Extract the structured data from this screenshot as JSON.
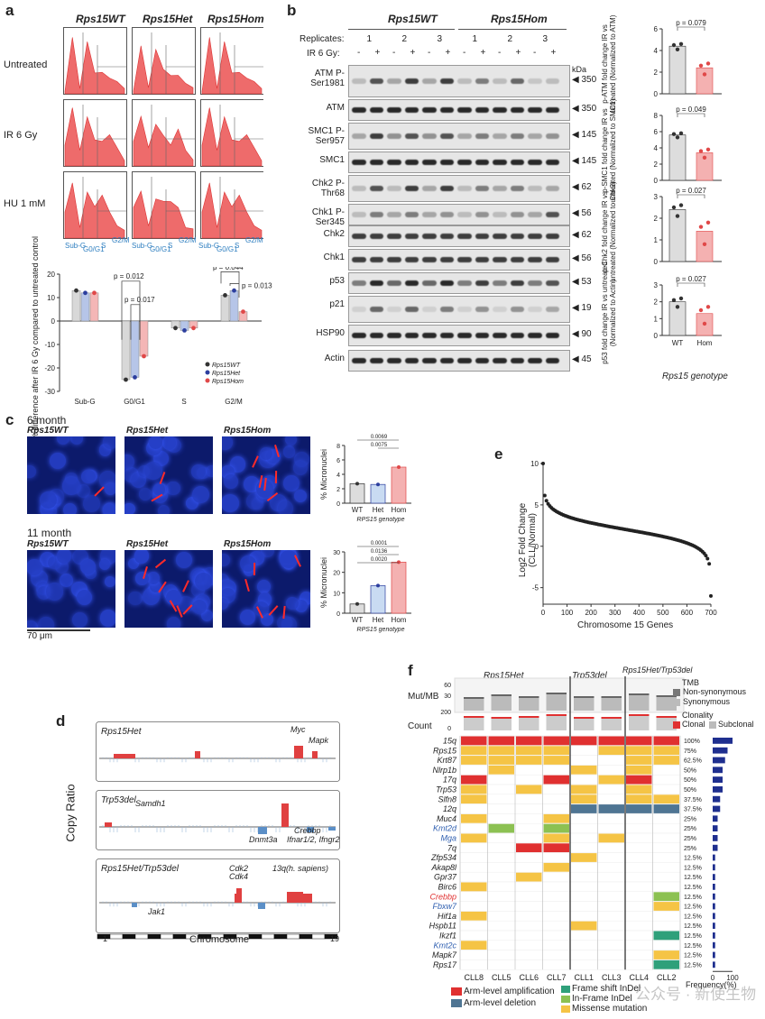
{
  "panels": {
    "a": "a",
    "b": "b",
    "c": "c",
    "d": "d",
    "e": "e",
    "f": "f"
  },
  "a": {
    "genotypes": [
      "Rps15WT",
      "Rps15Het",
      "Rps15Hom"
    ],
    "rows": [
      "Untreated",
      "IR 6 Gy",
      "HU 1 mM"
    ],
    "phases": [
      "Sub-G",
      "G0/G1",
      "S",
      "G2/M"
    ],
    "ylabel": "% difference after IR 6 Gy compared to untreated control",
    "pvals": [
      "p = 0.012",
      "p = 0.017",
      "p = 0.044",
      "p = 0.013"
    ],
    "legend": [
      "Rps15WT",
      "Rps15Het",
      "Rps15Hom"
    ],
    "yticks": [
      "20",
      "10",
      "0",
      "-10",
      "-20",
      "-30"
    ]
  },
  "b": {
    "groups": [
      "Rps15WT",
      "Rps15Hom"
    ],
    "replicates_label": "Replicates:",
    "replicates": [
      "1",
      "2",
      "3",
      "1",
      "2",
      "3"
    ],
    "ir_label": "IR 6 Gy:",
    "ir": [
      "-",
      "+",
      "-",
      "+",
      "-",
      "+",
      "-",
      "+",
      "-",
      "+",
      "-",
      "+"
    ],
    "kda": "kDa",
    "blots": [
      {
        "name": "ATM P-Ser1981",
        "size": "350"
      },
      {
        "name": "ATM",
        "size": "350"
      },
      {
        "name": "SMC1 P-Ser957",
        "size": "145"
      },
      {
        "name": "SMC1",
        "size": "145"
      },
      {
        "name": "Chk2 P-Thr68",
        "size": "62"
      },
      {
        "name": "Chk1 P-Ser345",
        "size": "56"
      },
      {
        "name": "Chk2",
        "size": "62"
      },
      {
        "name": "Chk1",
        "size": "56"
      },
      {
        "name": "p53",
        "size": "53"
      },
      {
        "name": "p21",
        "size": "19"
      },
      {
        "name": "HSP90",
        "size": "90"
      },
      {
        "name": "Actin",
        "size": "45"
      }
    ],
    "quant": [
      {
        "p": "p = 0.079",
        "ylabel": "p-ATM fold change IR vs untreated (Normalized to ATM)",
        "wt": 4.4,
        "hom": 2.4,
        "max": 6,
        "ticks": [
          "6",
          "4",
          "2",
          "0"
        ]
      },
      {
        "p": "p = 0.049",
        "ylabel": "p-SMC1 fold change IR vs untreated (Normalized to SMC1)",
        "wt": 5.6,
        "hom": 3.4,
        "max": 8,
        "ticks": [
          "8",
          "6",
          "4",
          "2",
          "0"
        ]
      },
      {
        "p": "p = 0.027",
        "ylabel": "p-Chk2 fold change IR vs untreated (Normalized to Chk2)",
        "wt": 2.4,
        "hom": 1.4,
        "max": 3,
        "ticks": [
          "3",
          "2",
          "1",
          "0"
        ]
      },
      {
        "p": "p = 0.027",
        "ylabel": "p53 fold change IR vs untreated (Normalized to Actin)",
        "wt": 2.0,
        "hom": 1.3,
        "max": 3,
        "ticks": [
          "3",
          "2",
          "1",
          "0"
        ]
      }
    ],
    "xcats": [
      "WT",
      "Hom"
    ],
    "xlabel": "Rps15 genotype"
  },
  "c": {
    "t6": "6 month",
    "t11": "11 month",
    "genos": [
      "Rps15WT",
      "Rps15Het",
      "Rps15Hom"
    ],
    "scale": "70 μm",
    "ylabel": "% Micronuclei",
    "xlabel": "RPS15 genotype",
    "cats": [
      "WT",
      "Het",
      "Hom"
    ],
    "m6": {
      "values": [
        2.7,
        2.6,
        5.0
      ],
      "ticks": [
        "8",
        "6",
        "4",
        "2",
        "0"
      ],
      "max": 8,
      "p": [
        "0.0069",
        "0.0075"
      ]
    },
    "m11": {
      "values": [
        4.5,
        13.5,
        25.0
      ],
      "ticks": [
        "30",
        "20",
        "10",
        "0"
      ],
      "max": 30,
      "p": [
        "0.0001",
        "0.0136",
        "0.0020"
      ]
    }
  },
  "d": {
    "tracks": [
      "Rps15Het",
      "Trp53del",
      "Rps15Het/Trp53del"
    ],
    "ylabel": "Copy Ratio",
    "xlabel": "Chromosome",
    "xstart": "1",
    "xend": "19",
    "genes": [
      "Myc",
      "Mapk",
      "Samdh1",
      "Dnmt3a",
      "Crebbp",
      "Ifnar1/2, Ifngr2",
      "Cdk2",
      "Cdk4",
      "13q(h. sapiens)",
      "Jak1"
    ]
  },
  "e": {
    "ylabel": "Log2 Fold Change (CLL/Normal)",
    "xlabel": "Chromosome 15 Genes",
    "xticks": [
      "0",
      "100",
      "200",
      "300",
      "400",
      "500",
      "600",
      "700"
    ],
    "yticks": [
      "10",
      "5",
      "0",
      "-5"
    ]
  },
  "f": {
    "groups": [
      "Rps15Het",
      "Trp53del",
      "Rps15Het/Trp53del"
    ],
    "mut_label": "Mut/MB",
    "mut_ticks": [
      "60",
      "30"
    ],
    "count_label": "Count",
    "count_ticks": [
      "200",
      "0"
    ],
    "tmb_legend": [
      "TMB",
      "Non-synonymous",
      "Synonymous"
    ],
    "clon_legend": [
      "Clonality",
      "Clonal",
      "Subclonal"
    ],
    "genes": [
      "15q",
      "Rps15",
      "Krt87",
      "Nlrp1b",
      "17q",
      "Trp53",
      "Slfn8",
      "12q",
      "Muc4",
      "Kmt2d",
      "Mga",
      "7q",
      "Zfp534",
      "Akap8l",
      "Gpr37",
      "Birc6",
      "Crebbp",
      "Fbxw7",
      "Hif1a",
      "Hspb11",
      "Ikzf1",
      "Kmt2c",
      "Mapk7",
      "Rps17"
    ],
    "freqs": [
      "100%",
      "75%",
      "62.5%",
      "50%",
      "50%",
      "50%",
      "37.5%",
      "37.5%",
      "25%",
      "25%",
      "25%",
      "25%",
      "12.5%",
      "12.5%",
      "12.5%",
      "12.5%",
      "12.5%",
      "12.5%",
      "12.5%",
      "12.5%",
      "12.5%",
      "12.5%",
      "12.5%",
      "12.5%"
    ],
    "samples": [
      "CLL8",
      "CLL5",
      "CLL6",
      "CLL7",
      "CLL1",
      "CLL3",
      "CLL4",
      "CLL2"
    ],
    "freq_axis": "Frequency(%)",
    "freq_ticks": [
      "0",
      "100"
    ],
    "legend": [
      "Arm-level amplification",
      "Arm-level deletion",
      "Frame shift InDel",
      "In-Frame InDel",
      "Missense mutation"
    ],
    "watermark": "公众号 · 新使生物"
  },
  "colors": {
    "amp": "#e03030",
    "del": "#4f7593",
    "fs": "#2fa07a",
    "inframe": "#8cc152",
    "missense": "#f5c445",
    "wt": "#333333",
    "het": "#2c3e9e",
    "hom": "#e04848"
  }
}
